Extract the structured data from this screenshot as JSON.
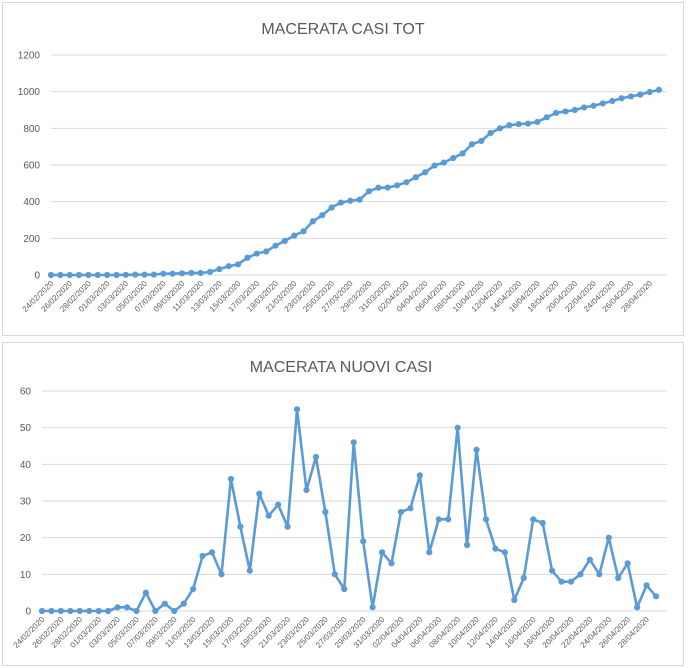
{
  "colors": {
    "series": "#5b9bd5",
    "grid": "#d9d9d9",
    "text": "#595959"
  },
  "chart_data": [
    {
      "type": "line",
      "title": "MACERATA CASI TOT",
      "xlabel": "",
      "ylabel": "",
      "ylim": [
        0,
        1200
      ],
      "yticks": [
        0,
        200,
        400,
        600,
        800,
        1000,
        1200
      ],
      "grid": true,
      "x": [
        "24/02/2020",
        "25/02/2020",
        "26/02/2020",
        "27/02/2020",
        "28/02/2020",
        "29/02/2020",
        "01/03/2020",
        "02/03/2020",
        "03/03/2020",
        "04/03/2020",
        "05/03/2020",
        "06/03/2020",
        "07/03/2020",
        "08/03/2020",
        "09/03/2020",
        "10/03/2020",
        "11/03/2020",
        "12/03/2020",
        "13/03/2020",
        "14/03/2020",
        "15/03/2020",
        "16/03/2020",
        "17/03/2020",
        "18/03/2020",
        "19/03/2020",
        "20/03/2020",
        "21/03/2020",
        "22/03/2020",
        "23/03/2020",
        "24/03/2020",
        "25/03/2020",
        "26/03/2020",
        "27/03/2020",
        "28/03/2020",
        "29/03/2020",
        "30/03/2020",
        "31/03/2020",
        "01/04/2020",
        "02/04/2020",
        "03/04/2020",
        "04/04/2020",
        "05/04/2020",
        "06/04/2020",
        "07/04/2020",
        "08/04/2020",
        "09/04/2020",
        "10/04/2020",
        "11/04/2020",
        "12/04/2020",
        "13/04/2020",
        "14/04/2020",
        "15/04/2020",
        "16/04/2020",
        "17/04/2020",
        "18/04/2020",
        "19/04/2020",
        "20/04/2020",
        "21/04/2020",
        "22/04/2020",
        "23/04/2020",
        "24/04/2020",
        "25/04/2020",
        "26/04/2020",
        "27/04/2020",
        "28/04/2020",
        "29/04/2020"
      ],
      "xtick_labels": [
        "24/02/2020",
        "26/02/2020",
        "28/02/2020",
        "01/03/2020",
        "03/03/2020",
        "05/03/2020",
        "07/03/2020",
        "09/03/2020",
        "11/03/2020",
        "13/03/2020",
        "15/03/2020",
        "17/03/2020",
        "19/03/2020",
        "21/03/2020",
        "23/03/2020",
        "25/03/2020",
        "27/03/2020",
        "29/03/2020",
        "31/03/2020",
        "02/04/2020",
        "04/04/2020",
        "06/04/2020",
        "08/04/2020",
        "10/04/2020",
        "12/04/2020",
        "14/04/2020",
        "16/04/2020",
        "18/04/2020",
        "20/04/2020",
        "22/04/2020",
        "24/04/2020",
        "26/04/2020",
        "28/04/2020"
      ],
      "series": [
        {
          "values": [
            0,
            0,
            0,
            0,
            0,
            0,
            0,
            0,
            1,
            2,
            2,
            2,
            7,
            7,
            9,
            11,
            11,
            17,
            32,
            48,
            58,
            94,
            117,
            128,
            160,
            186,
            215,
            238,
            293,
            326,
            368,
            395,
            405,
            411,
            457,
            476,
            477,
            489,
            506,
            533,
            560,
            597,
            613,
            638,
            663,
            713,
            731,
            775,
            800,
            817,
            823,
            826,
            835,
            860,
            884,
            892,
            900,
            914,
            923,
            936,
            949,
            964,
            974,
            984,
            998,
            1010
          ]
        }
      ]
    },
    {
      "type": "line",
      "title": "MACERATA NUOVI CASI",
      "xlabel": "",
      "ylabel": "",
      "ylim": [
        0,
        60
      ],
      "yticks": [
        0,
        10,
        20,
        30,
        40,
        50,
        60
      ],
      "grid": true,
      "x": [
        "24/02/2020",
        "25/02/2020",
        "26/02/2020",
        "27/02/2020",
        "28/02/2020",
        "29/02/2020",
        "01/03/2020",
        "02/03/2020",
        "03/03/2020",
        "04/03/2020",
        "05/03/2020",
        "06/03/2020",
        "07/03/2020",
        "08/03/2020",
        "09/03/2020",
        "10/03/2020",
        "11/03/2020",
        "12/03/2020",
        "13/03/2020",
        "14/03/2020",
        "15/03/2020",
        "16/03/2020",
        "17/03/2020",
        "18/03/2020",
        "19/03/2020",
        "20/03/2020",
        "21/03/2020",
        "22/03/2020",
        "23/03/2020",
        "24/03/2020",
        "25/03/2020",
        "26/03/2020",
        "27/03/2020",
        "28/03/2020",
        "29/03/2020",
        "30/03/2020",
        "31/03/2020",
        "01/04/2020",
        "02/04/2020",
        "03/04/2020",
        "04/04/2020",
        "05/04/2020",
        "06/04/2020",
        "07/04/2020",
        "08/04/2020",
        "09/04/2020",
        "10/04/2020",
        "11/04/2020",
        "12/04/2020",
        "13/04/2020",
        "14/04/2020",
        "15/04/2020",
        "16/04/2020",
        "17/04/2020",
        "18/04/2020",
        "19/04/2020",
        "20/04/2020",
        "21/04/2020",
        "22/04/2020",
        "23/04/2020",
        "24/04/2020",
        "25/04/2020",
        "26/04/2020",
        "27/04/2020",
        "28/04/2020",
        "29/04/2020"
      ],
      "xtick_labels": [
        "24/02/2020",
        "26/02/2020",
        "28/02/2020",
        "01/03/2020",
        "03/03/2020",
        "05/03/2020",
        "07/03/2020",
        "09/03/2020",
        "11/03/2020",
        "13/03/2020",
        "15/03/2020",
        "17/03/2020",
        "19/03/2020",
        "21/03/2020",
        "23/03/2020",
        "25/03/2020",
        "27/03/2020",
        "29/03/2020",
        "31/03/2020",
        "02/04/2020",
        "04/04/2020",
        "06/04/2020",
        "08/04/2020",
        "10/04/2020",
        "12/04/2020",
        "14/04/2020",
        "16/04/2020",
        "18/04/2020",
        "20/04/2020",
        "22/04/2020",
        "24/04/2020",
        "26/04/2020",
        "28/04/2020"
      ],
      "series": [
        {
          "values": [
            0,
            0,
            0,
            0,
            0,
            0,
            0,
            0,
            1,
            1,
            0,
            5,
            0,
            2,
            0,
            2,
            6,
            15,
            16,
            10,
            36,
            23,
            11,
            32,
            26,
            29,
            23,
            55,
            33,
            42,
            27,
            10,
            6,
            46,
            19,
            1,
            16,
            13,
            27,
            28,
            37,
            16,
            25,
            25,
            50,
            18,
            44,
            25,
            17,
            16,
            3,
            9,
            25,
            24,
            11,
            8,
            8,
            10,
            14,
            10,
            20,
            9,
            13,
            1,
            7,
            4
          ]
        }
      ]
    }
  ]
}
